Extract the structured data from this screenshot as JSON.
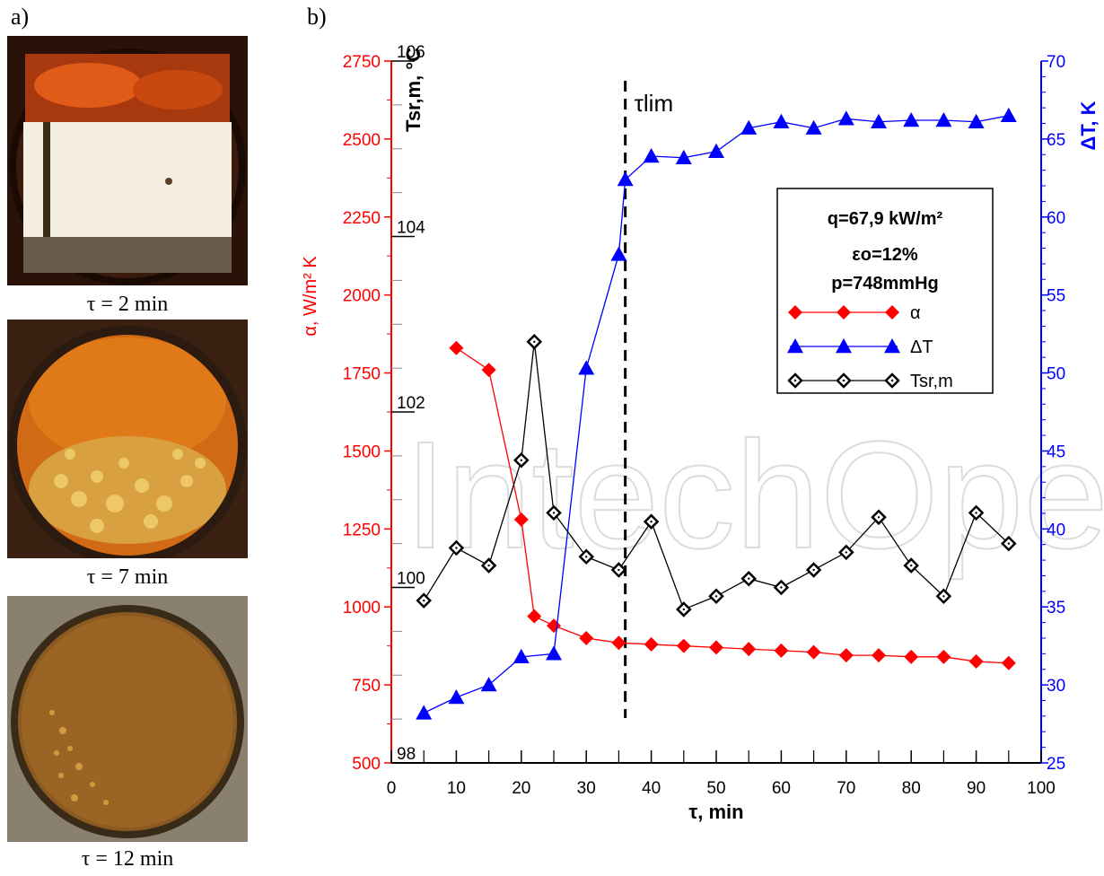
{
  "panels": {
    "a": "a)",
    "b": "b)"
  },
  "photos": [
    {
      "caption": "τ = 2 min"
    },
    {
      "caption": "τ = 7 min"
    },
    {
      "caption": "τ = 12 min"
    }
  ],
  "watermark": "IntechOpen",
  "colors": {
    "alpha": "#ff0000",
    "deltaT": "#0000ff",
    "tsrm": "#000000",
    "dashed": "#000000"
  },
  "chart_data": {
    "type": "line",
    "xlabel": "τ, min",
    "xlim": [
      0,
      100
    ],
    "xticks": [
      0,
      10,
      20,
      30,
      40,
      50,
      60,
      70,
      80,
      90,
      100
    ],
    "axes": {
      "alpha": {
        "label": "α, W/m² K",
        "ylim": [
          500,
          2750
        ],
        "ticks": [
          500,
          750,
          1000,
          1250,
          1500,
          1750,
          2000,
          2250,
          2500,
          2750
        ]
      },
      "tsrm": {
        "label": "Tsr,m, °C",
        "ylim": [
          98,
          106
        ],
        "ticks": [
          98,
          100,
          102,
          104,
          106
        ]
      },
      "deltaT": {
        "label": "ΔT, K",
        "ylim": [
          25,
          70
        ],
        "ticks": [
          25,
          30,
          35,
          40,
          45,
          50,
          55,
          60,
          65,
          70
        ]
      }
    },
    "vline": {
      "x": 36,
      "label": "τlim"
    },
    "legend": {
      "position": "top-right",
      "lines": [
        "q=67,9 kW/m²",
        "εo=12%",
        "p=748mmHg"
      ]
    },
    "series": [
      {
        "name": "α",
        "axis": "alpha",
        "marker": "diamond-filled",
        "x": [
          10,
          15,
          20,
          22,
          25,
          30,
          35,
          40,
          45,
          50,
          55,
          60,
          65,
          70,
          75,
          80,
          85,
          90,
          95
        ],
        "y": [
          1830,
          1760,
          1280,
          970,
          940,
          900,
          885,
          880,
          875,
          870,
          865,
          860,
          855,
          845,
          845,
          840,
          840,
          825,
          820
        ]
      },
      {
        "name": "ΔT",
        "axis": "deltaT",
        "marker": "triangle",
        "x": [
          5,
          10,
          15,
          20,
          25,
          30,
          35,
          36,
          40,
          45,
          50,
          55,
          60,
          65,
          70,
          75,
          80,
          85,
          90,
          95
        ],
        "y": [
          28.2,
          29.2,
          30,
          31.8,
          32,
          50.3,
          57.6,
          62.4,
          63.9,
          63.8,
          64.2,
          65.7,
          66.1,
          65.7,
          66.3,
          66.1,
          66.2,
          66.2,
          66.1,
          66.5
        ]
      },
      {
        "name": "Tsr,m",
        "axis": "tsrm",
        "marker": "diamond-open",
        "x": [
          5,
          10,
          15,
          20,
          22,
          25,
          30,
          35,
          40,
          45,
          50,
          55,
          60,
          65,
          70,
          75,
          80,
          85,
          90,
          95
        ],
        "y": [
          99.85,
          100.45,
          100.25,
          101.45,
          102.8,
          100.85,
          100.35,
          100.2,
          100.75,
          99.75,
          99.9,
          100.1,
          100.0,
          100.2,
          100.4,
          100.8,
          100.25,
          99.9,
          100.85,
          100.5
        ]
      }
    ]
  }
}
